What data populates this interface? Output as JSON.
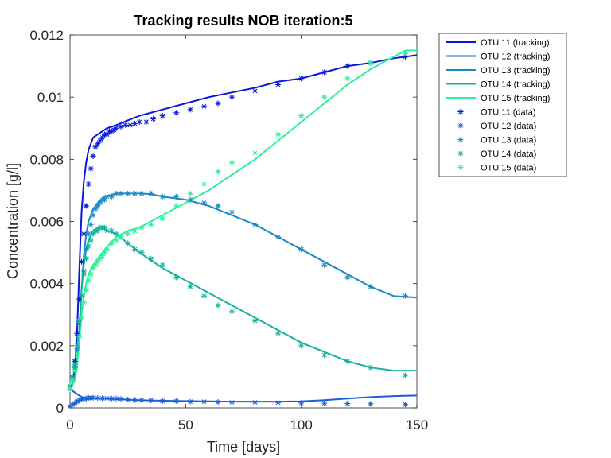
{
  "chart_data": {
    "type": "line",
    "title": "Tracking results NOB iteration:5",
    "xlabel": "Time [days]",
    "ylabel": "Concentration [g/l]",
    "xlim": [
      0,
      150
    ],
    "ylim": [
      0,
      0.012
    ],
    "xticks": [
      0,
      50,
      100,
      150
    ],
    "xtick_labels": [
      "0",
      "50",
      "100",
      "150"
    ],
    "yticks": [
      0,
      0.002,
      0.004,
      0.006,
      0.008,
      0.01,
      0.012
    ],
    "ytick_labels": [
      "0",
      "0.002",
      "0.004",
      "0.006",
      "0.008",
      "0.01",
      "0.012"
    ],
    "grid": false,
    "legend_position": "top-right, outside plot area",
    "series": [
      {
        "name": "OTU 11 (tracking)",
        "kind": "line",
        "color": "#0a18d8",
        "x": [
          0,
          1,
          2,
          3,
          4,
          5,
          6,
          7,
          8,
          9,
          10,
          12,
          14,
          16,
          18,
          20,
          25,
          30,
          40,
          50,
          60,
          70,
          80,
          90,
          100,
          110,
          120,
          130,
          140,
          150
        ],
        "y": [
          0.0006,
          0.0008,
          0.0012,
          0.0023,
          0.0044,
          0.0063,
          0.0073,
          0.0079,
          0.0083,
          0.0085,
          0.0087,
          0.0088,
          0.0089,
          0.009,
          0.00905,
          0.0091,
          0.00925,
          0.0094,
          0.0096,
          0.0098,
          0.01,
          0.01015,
          0.0103,
          0.0105,
          0.0106,
          0.0108,
          0.011,
          0.0111,
          0.01125,
          0.01135
        ]
      },
      {
        "name": "OTU 12 (tracking)",
        "kind": "line",
        "color": "#1b5fd6",
        "x": [
          0,
          2,
          4,
          6,
          8,
          10,
          12,
          15,
          20,
          30,
          40,
          50,
          60,
          70,
          80,
          90,
          100,
          110,
          120,
          130,
          140,
          150
        ],
        "y": [
          0.0006,
          0.0005,
          0.0004,
          0.00032,
          0.00031,
          0.00031,
          0.0003,
          0.0003,
          0.00028,
          0.00025,
          0.00023,
          0.00022,
          0.00021,
          0.0002,
          0.0002,
          0.0002,
          0.00021,
          0.00025,
          0.0003,
          0.00035,
          0.00038,
          0.0004
        ]
      },
      {
        "name": "OTU 13 (tracking)",
        "kind": "line",
        "color": "#1c89c4",
        "x": [
          0,
          1,
          2,
          3,
          4,
          5,
          6,
          7,
          8,
          10,
          12,
          15,
          20,
          25,
          30,
          35,
          40,
          50,
          60,
          70,
          80,
          90,
          100,
          110,
          120,
          130,
          140,
          150
        ],
        "y": [
          0.0006,
          0.0007,
          0.0009,
          0.0013,
          0.0024,
          0.0038,
          0.0049,
          0.0056,
          0.006,
          0.0064,
          0.0066,
          0.0068,
          0.0069,
          0.0069,
          0.0069,
          0.00688,
          0.0068,
          0.0067,
          0.0065,
          0.0062,
          0.0059,
          0.0055,
          0.0051,
          0.0047,
          0.0043,
          0.0039,
          0.0036,
          0.00355
        ]
      },
      {
        "name": "OTU 14 (tracking)",
        "kind": "line",
        "color": "#16b0a0",
        "x": [
          0,
          1,
          2,
          3,
          4,
          5,
          6,
          7,
          8,
          10,
          12,
          14,
          16,
          20,
          25,
          30,
          40,
          50,
          60,
          70,
          80,
          90,
          100,
          110,
          120,
          130,
          140,
          150
        ],
        "y": [
          0.0006,
          0.0007,
          0.0009,
          0.0014,
          0.0025,
          0.0038,
          0.0046,
          0.0051,
          0.0054,
          0.0057,
          0.0058,
          0.0058,
          0.0057,
          0.0056,
          0.0053,
          0.005,
          0.0045,
          0.0041,
          0.0037,
          0.0033,
          0.0029,
          0.0025,
          0.0021,
          0.0018,
          0.0015,
          0.0013,
          0.0012,
          0.0012
        ]
      },
      {
        "name": "OTU 15 (tracking)",
        "kind": "line",
        "color": "#2ef09a",
        "x": [
          0,
          1,
          2,
          3,
          4,
          5,
          6,
          7,
          8,
          10,
          12,
          15,
          20,
          25,
          30,
          40,
          50,
          60,
          70,
          80,
          90,
          100,
          110,
          120,
          130,
          140,
          145,
          150
        ],
        "y": [
          0.0006,
          0.0007,
          0.0009,
          0.0013,
          0.0021,
          0.003,
          0.0036,
          0.004,
          0.0043,
          0.0046,
          0.0048,
          0.0051,
          0.0055,
          0.0057,
          0.0058,
          0.0062,
          0.0066,
          0.007,
          0.0075,
          0.008,
          0.0086,
          0.0092,
          0.0098,
          0.0104,
          0.0109,
          0.0113,
          0.0115,
          0.0115
        ]
      },
      {
        "name": "OTU 11 (data)",
        "kind": "marker",
        "color": "#0a18d8",
        "x": [
          0,
          1,
          2,
          3,
          4,
          5,
          6,
          7,
          8,
          9,
          10,
          11,
          12,
          13,
          14,
          15,
          16,
          17,
          18,
          19,
          20,
          22,
          24,
          26,
          28,
          30,
          33,
          36,
          40,
          46,
          52,
          58,
          64,
          70,
          80,
          90,
          100,
          110,
          120,
          130,
          145
        ],
        "y": [
          0.0006,
          0.001,
          0.0015,
          0.0024,
          0.0035,
          0.0047,
          0.0056,
          0.0065,
          0.0072,
          0.0077,
          0.0081,
          0.0084,
          0.0085,
          0.0086,
          0.0087,
          0.0088,
          0.0088,
          0.0089,
          0.0089,
          0.00895,
          0.009,
          0.00905,
          0.0091,
          0.0091,
          0.00915,
          0.0092,
          0.0092,
          0.0093,
          0.0094,
          0.0095,
          0.0096,
          0.0097,
          0.0098,
          0.01,
          0.0102,
          0.0104,
          0.0106,
          0.0108,
          0.011,
          0.0111,
          0.0113
        ]
      },
      {
        "name": "OTU 12 (data)",
        "kind": "marker",
        "color": "#1b5fd6",
        "x": [
          0,
          1,
          2,
          3,
          4,
          5,
          6,
          7,
          8,
          9,
          10,
          12,
          14,
          16,
          18,
          20,
          22,
          25,
          28,
          31,
          35,
          40,
          46,
          52,
          58,
          64,
          70,
          80,
          90,
          100,
          110,
          120,
          130,
          145
        ],
        "y": [
          5e-05,
          0.0001,
          0.00015,
          0.0002,
          0.00025,
          0.00028,
          0.0003,
          0.0003,
          0.00032,
          0.00032,
          0.00033,
          0.00032,
          0.00031,
          0.00031,
          0.0003,
          0.0003,
          0.00029,
          0.00027,
          0.00026,
          0.00025,
          0.00024,
          0.00022,
          0.00022,
          0.0002,
          0.0002,
          0.00019,
          0.00018,
          0.00018,
          0.00017,
          0.00016,
          0.00015,
          0.00014,
          0.00013,
          0.00011
        ]
      },
      {
        "name": "OTU 13 (data)",
        "kind": "marker",
        "color": "#1c89c4",
        "x": [
          0,
          1,
          2,
          3,
          4,
          5,
          6,
          7,
          8,
          9,
          10,
          11,
          12,
          13,
          14,
          15,
          16,
          18,
          20,
          22,
          25,
          28,
          31,
          35,
          40,
          46,
          52,
          58,
          64,
          70,
          80,
          90,
          100,
          110,
          120,
          130,
          145
        ],
        "y": [
          0.0007,
          0.0009,
          0.0013,
          0.0019,
          0.0027,
          0.0036,
          0.0044,
          0.0051,
          0.0056,
          0.0059,
          0.0062,
          0.0064,
          0.0065,
          0.0066,
          0.0067,
          0.0067,
          0.0068,
          0.0068,
          0.0069,
          0.0069,
          0.0069,
          0.0069,
          0.0069,
          0.0069,
          0.0068,
          0.0068,
          0.0067,
          0.0066,
          0.0065,
          0.0063,
          0.0059,
          0.0055,
          0.0051,
          0.0046,
          0.0042,
          0.0039,
          0.0036
        ]
      },
      {
        "name": "OTU 14 (data)",
        "kind": "marker",
        "color": "#16b0a0",
        "x": [
          0,
          1,
          2,
          3,
          4,
          5,
          6,
          7,
          8,
          9,
          10,
          11,
          12,
          13,
          14,
          15,
          16,
          18,
          20,
          22,
          25,
          28,
          31,
          35,
          40,
          46,
          52,
          58,
          64,
          70,
          80,
          90,
          100,
          110,
          120,
          130,
          145
        ],
        "y": [
          0.0007,
          0.001,
          0.0014,
          0.002,
          0.0028,
          0.0036,
          0.0043,
          0.0048,
          0.0052,
          0.0054,
          0.0056,
          0.0057,
          0.0057,
          0.0058,
          0.0058,
          0.0058,
          0.0057,
          0.0057,
          0.0056,
          0.0055,
          0.0053,
          0.0051,
          0.005,
          0.0048,
          0.0046,
          0.0042,
          0.0039,
          0.0036,
          0.0033,
          0.0031,
          0.0028,
          0.0024,
          0.002,
          0.0017,
          0.0015,
          0.0013,
          0.00105
        ]
      },
      {
        "name": "OTU 15 (data)",
        "kind": "marker",
        "color": "#2ef09a",
        "x": [
          0,
          1,
          2,
          3,
          4,
          5,
          6,
          7,
          8,
          9,
          10,
          11,
          12,
          13,
          14,
          15,
          16,
          18,
          20,
          22,
          25,
          28,
          31,
          35,
          40,
          46,
          52,
          58,
          64,
          70,
          80,
          90,
          100,
          110,
          120,
          130,
          145
        ],
        "y": [
          0.0006,
          0.0009,
          0.0012,
          0.0017,
          0.0023,
          0.0029,
          0.0034,
          0.0038,
          0.0041,
          0.0043,
          0.0045,
          0.0046,
          0.0047,
          0.0048,
          0.0049,
          0.005,
          0.0051,
          0.0053,
          0.0054,
          0.0055,
          0.0056,
          0.0057,
          0.0058,
          0.0059,
          0.0061,
          0.0065,
          0.0069,
          0.0072,
          0.0076,
          0.0079,
          0.0082,
          0.0088,
          0.0094,
          0.01,
          0.0106,
          0.0111,
          0.0114
        ]
      }
    ]
  }
}
